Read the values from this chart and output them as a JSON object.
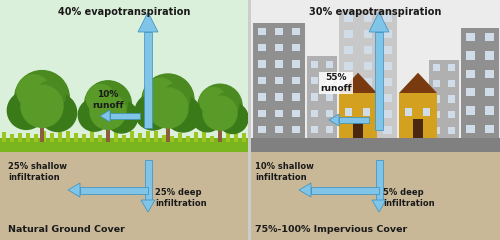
{
  "bg_color": "#f8f8f5",
  "sky_left": "#daf0da",
  "sky_right": "#ececec",
  "ground_color": "#c8b898",
  "grass_color": "#7ab520",
  "grass_color2": "#9dc520",
  "tree_dark": "#3a7a18",
  "tree_mid": "#4a8a20",
  "tree_light": "#5a9a28",
  "tree_trunk": "#8B5E3C",
  "building_dark": "#909090",
  "building_mid": "#b0b0b0",
  "building_light": "#c8c8c8",
  "window_color": "#d0dce8",
  "house_yellow": "#d4a020",
  "house_roof": "#7a3a10",
  "house_door": "#4a2810",
  "pavement": "#808080",
  "arrow_fill": "#80c4e8",
  "arrow_edge": "#3890c0",
  "text_color": "#1a1a1a",
  "divider": "#aaaaaa",
  "left_panel": {
    "evapotranspiration": "40% evapotranspiration",
    "runoff": "10%\nrunoff",
    "shallow": "25% shallow\ninfiltration",
    "deep": "25% deep\ninfiltration",
    "title": "Natural Ground Cover"
  },
  "right_panel": {
    "evapotranspiration": "30% evapotranspiration",
    "runoff": "55%\nrunoff",
    "shallow": "10% shallow\ninfiltration",
    "deep": "5% deep\ninfiltration",
    "title": "75%-100% Impervious Cover"
  }
}
